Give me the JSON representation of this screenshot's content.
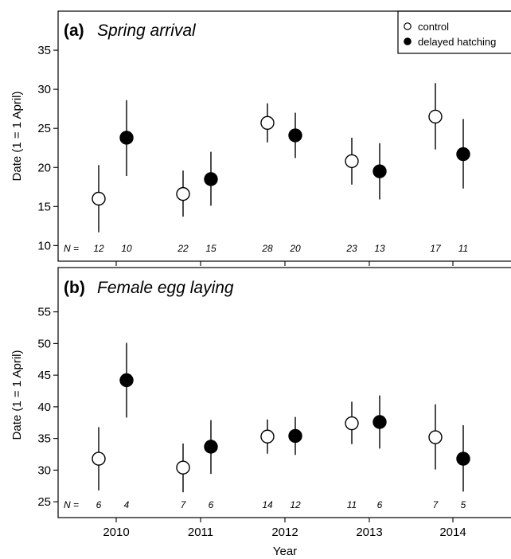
{
  "chart_data": [
    {
      "type": "scatter",
      "panel_label": "(a)",
      "title": "Spring arrival",
      "ylabel": "Date (1 = 1 April)",
      "ylim": [
        8,
        40
      ],
      "yticks": [
        10,
        15,
        20,
        25,
        30,
        35
      ],
      "categories": [
        "2010",
        "2011",
        "2012",
        "2013",
        "2014"
      ],
      "n_label": "N =",
      "series": [
        {
          "name": "control",
          "marker": "open",
          "values": [
            16.0,
            16.6,
            25.7,
            20.8,
            26.5
          ],
          "lower": [
            11.7,
            13.7,
            23.2,
            17.8,
            22.3
          ],
          "upper": [
            20.3,
            19.6,
            28.2,
            23.8,
            30.8
          ],
          "n": [
            "12",
            "22",
            "28",
            "23",
            "17"
          ]
        },
        {
          "name": "delayed hatching",
          "marker": "filled",
          "values": [
            23.8,
            18.5,
            24.1,
            19.5,
            21.7
          ],
          "lower": [
            18.9,
            15.1,
            21.2,
            15.9,
            17.3
          ],
          "upper": [
            28.6,
            22.0,
            27.0,
            23.1,
            26.2
          ],
          "n": [
            "10",
            "15",
            "20",
            "13",
            "11"
          ]
        }
      ]
    },
    {
      "type": "scatter",
      "panel_label": "(b)",
      "title": "Female egg laying",
      "ylabel": "Date (1 = 1 April)",
      "xlabel": "Year",
      "ylim": [
        22.5,
        62
      ],
      "yticks": [
        25,
        30,
        35,
        40,
        45,
        50,
        55
      ],
      "categories": [
        "2010",
        "2011",
        "2012",
        "2013",
        "2014"
      ],
      "n_label": "N =",
      "series": [
        {
          "name": "control",
          "marker": "open",
          "values": [
            31.8,
            30.4,
            35.3,
            37.4,
            35.2
          ],
          "lower": [
            26.8,
            26.5,
            32.6,
            34.1,
            30.1
          ],
          "upper": [
            36.8,
            34.2,
            38.0,
            40.8,
            40.4
          ],
          "n": [
            "6",
            "7",
            "14",
            "11",
            "7"
          ]
        },
        {
          "name": "delayed hatching",
          "marker": "filled",
          "values": [
            44.2,
            33.7,
            35.4,
            37.6,
            31.8
          ],
          "lower": [
            38.3,
            29.4,
            32.4,
            33.4,
            26.6
          ],
          "upper": [
            50.1,
            37.9,
            38.4,
            41.8,
            37.1
          ],
          "n": [
            "4",
            "6",
            "12",
            "6",
            "5"
          ]
        }
      ]
    }
  ],
  "legend": {
    "position": "top-right",
    "items": [
      {
        "label": "control",
        "marker": "open"
      },
      {
        "label": "delayed hatching",
        "marker": "filled"
      }
    ]
  }
}
